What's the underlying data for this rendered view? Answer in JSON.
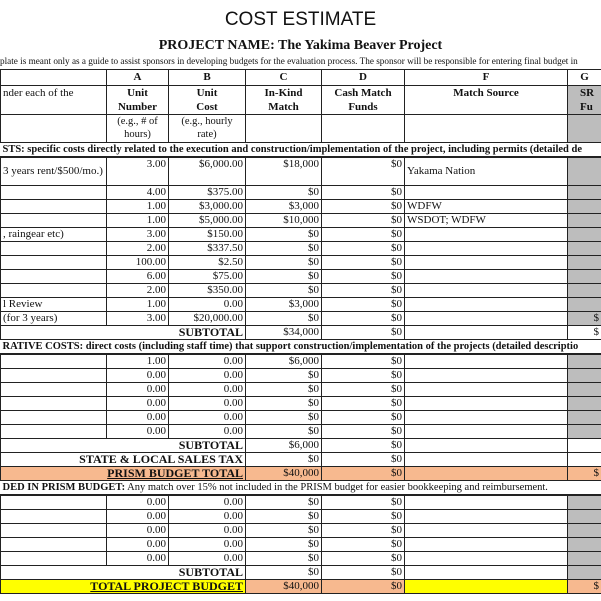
{
  "title": "COST ESTIMATE",
  "project_name": "PROJECT NAME: The Yakima Beaver Project",
  "note": "plate is meant  only as a guide to assist sponsors in developing budgets for the evaluation process. The sponsor will be responsible for entering final budget in",
  "columns": {
    "letters": [
      "A",
      "B",
      "C",
      "D",
      "F",
      "G"
    ],
    "headers": [
      "nder each of the",
      "Unit Number",
      "Unit Cost",
      "In-Kind Match",
      "Cash Match Funds",
      "Match Source",
      "SR Fu"
    ],
    "examples": [
      "(e.g., # of hours)",
      "(e.g., hourly rate)"
    ]
  },
  "section1": {
    "heading": "STS:  specific costs directly related to the execution and construction/implementation of the project, including permits (detailed de",
    "rows": [
      {
        "desc": "3 years rent/$500/mo.)",
        "a": "3.00",
        "b": "$6,000.00",
        "c": "$18,000",
        "d": "$0",
        "f": "Yakama Nation",
        "g": ""
      },
      {
        "desc": "",
        "a": "4.00",
        "b": "$375.00",
        "c": "$0",
        "d": "$0",
        "f": "",
        "g": ""
      },
      {
        "desc": "",
        "a": "1.00",
        "b": "$3,000.00",
        "c": "$3,000",
        "d": "$0",
        "f": "WDFW",
        "g": ""
      },
      {
        "desc": "",
        "a": "1.00",
        "b": "$5,000.00",
        "c": "$10,000",
        "d": "$0",
        "f": "WSDOT; WDFW",
        "g": ""
      },
      {
        "desc": ", raingear etc)",
        "a": "3.00",
        "b": "$150.00",
        "c": "$0",
        "d": "$0",
        "f": "",
        "g": ""
      },
      {
        "desc": "",
        "a": "2.00",
        "b": "$337.50",
        "c": "$0",
        "d": "$0",
        "f": "",
        "g": ""
      },
      {
        "desc": "",
        "a": "100.00",
        "b": "$2.50",
        "c": "$0",
        "d": "$0",
        "f": "",
        "g": ""
      },
      {
        "desc": "",
        "a": "6.00",
        "b": "$75.00",
        "c": "$0",
        "d": "$0",
        "f": "",
        "g": ""
      },
      {
        "desc": "",
        "a": "2.00",
        "b": "$350.00",
        "c": "$0",
        "d": "$0",
        "f": "",
        "g": ""
      },
      {
        "desc": "l Review",
        "a": "1.00",
        "b": "0.00",
        "c": "$3,000",
        "d": "$0",
        "f": "",
        "g": ""
      },
      {
        "desc": "(for 3 years)",
        "a": "3.00",
        "b": "$20,000.00",
        "c": "$0",
        "d": "$0",
        "f": "",
        "g": "$"
      }
    ],
    "subtotal": {
      "label": "SUBTOTAL",
      "c": "$34,000",
      "d": "$0",
      "g": "$"
    }
  },
  "section2": {
    "heading": "RATIVE COSTS:  direct costs (including staff time)  that support construction/implementation of the projects (detailed descriptio",
    "rows": [
      {
        "a": "1.00",
        "b": "0.00",
        "c": "$6,000",
        "d": "$0"
      },
      {
        "a": "0.00",
        "b": "0.00",
        "c": "$0",
        "d": "$0"
      },
      {
        "a": "0.00",
        "b": "0.00",
        "c": "$0",
        "d": "$0"
      },
      {
        "a": "0.00",
        "b": "0.00",
        "c": "$0",
        "d": "$0"
      },
      {
        "a": "0.00",
        "b": "0.00",
        "c": "$0",
        "d": "$0"
      },
      {
        "a": "0.00",
        "b": "0.00",
        "c": "$0",
        "d": "$0"
      }
    ],
    "subtotal": {
      "label": "SUBTOTAL",
      "c": "$6,000",
      "d": "$0"
    },
    "tax": {
      "label": "STATE & LOCAL SALES TAX",
      "c": "$0",
      "d": "$0"
    },
    "prism_total": {
      "label": "PRISM BUDGET TOTAL",
      "c": "$40,000",
      "d": "$0",
      "g": "$"
    }
  },
  "section3": {
    "heading_bold": "DED IN PRISM BUDGET:",
    "heading_rest": "  Any match over 15% not included in the PRISM budget for easier bookkeeping and reimbursement.",
    "rows": [
      {
        "a": "0.00",
        "b": "0.00",
        "c": "$0",
        "d": "$0"
      },
      {
        "a": "0.00",
        "b": "0.00",
        "c": "$0",
        "d": "$0"
      },
      {
        "a": "0.00",
        "b": "0.00",
        "c": "$0",
        "d": "$0"
      },
      {
        "a": "0.00",
        "b": "0.00",
        "c": "$0",
        "d": "$0"
      },
      {
        "a": "0.00",
        "b": "0.00",
        "c": "$0",
        "d": "$0"
      }
    ],
    "subtotal": {
      "label": "SUBTOTAL",
      "c": "$0",
      "d": "$0"
    },
    "total": {
      "label": "TOTAL PROJECT BUDGET",
      "c": "$40,000",
      "d": "$0",
      "g": "$"
    }
  },
  "colors": {
    "gray": "#bdbdbd",
    "peach": "#f7b98f",
    "yellow": "#ffff00"
  }
}
